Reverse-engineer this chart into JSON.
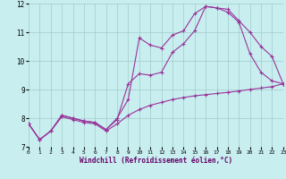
{
  "xlabel": "Windchill (Refroidissement éolien,°C)",
  "xlim": [
    0,
    23
  ],
  "ylim": [
    7,
    12
  ],
  "yticks": [
    7,
    8,
    9,
    10,
    11,
    12
  ],
  "xticks": [
    0,
    1,
    2,
    3,
    4,
    5,
    6,
    7,
    8,
    9,
    10,
    11,
    12,
    13,
    14,
    15,
    16,
    17,
    18,
    19,
    20,
    21,
    22,
    23
  ],
  "bg_color": "#c8eef0",
  "line_color": "#993399",
  "grid_color": "#a0ccc8",
  "line1_x": [
    0,
    1,
    2,
    3,
    4,
    5,
    6,
    7,
    8,
    9,
    10,
    11,
    12,
    13,
    14,
    15,
    16,
    17,
    18,
    19,
    20,
    21,
    22,
    23
  ],
  "line1_y": [
    7.8,
    7.25,
    7.55,
    8.1,
    8.0,
    7.9,
    7.85,
    7.6,
    8.0,
    8.65,
    10.8,
    10.55,
    10.45,
    10.9,
    11.05,
    11.65,
    11.9,
    11.85,
    11.8,
    11.4,
    11.0,
    10.5,
    10.15,
    9.2
  ],
  "line2_x": [
    0,
    1,
    2,
    3,
    4,
    5,
    6,
    7,
    8,
    9,
    10,
    11,
    12,
    13,
    14,
    15,
    16,
    17,
    18,
    19,
    20,
    21,
    22,
    23
  ],
  "line2_y": [
    7.8,
    7.25,
    7.55,
    8.1,
    8.0,
    7.9,
    7.85,
    7.6,
    7.95,
    9.2,
    9.55,
    9.5,
    9.6,
    10.3,
    10.6,
    11.05,
    11.9,
    11.85,
    11.7,
    11.35,
    10.25,
    9.6,
    9.3,
    9.2
  ],
  "line3_x": [
    0,
    1,
    2,
    3,
    4,
    5,
    6,
    7,
    8,
    9,
    10,
    11,
    12,
    13,
    14,
    15,
    16,
    17,
    18,
    19,
    20,
    21,
    22,
    23
  ],
  "line3_y": [
    7.8,
    7.25,
    7.55,
    8.05,
    7.95,
    7.85,
    7.8,
    7.55,
    7.8,
    8.1,
    8.3,
    8.45,
    8.55,
    8.65,
    8.72,
    8.78,
    8.82,
    8.86,
    8.9,
    8.95,
    9.0,
    9.05,
    9.1,
    9.2
  ]
}
